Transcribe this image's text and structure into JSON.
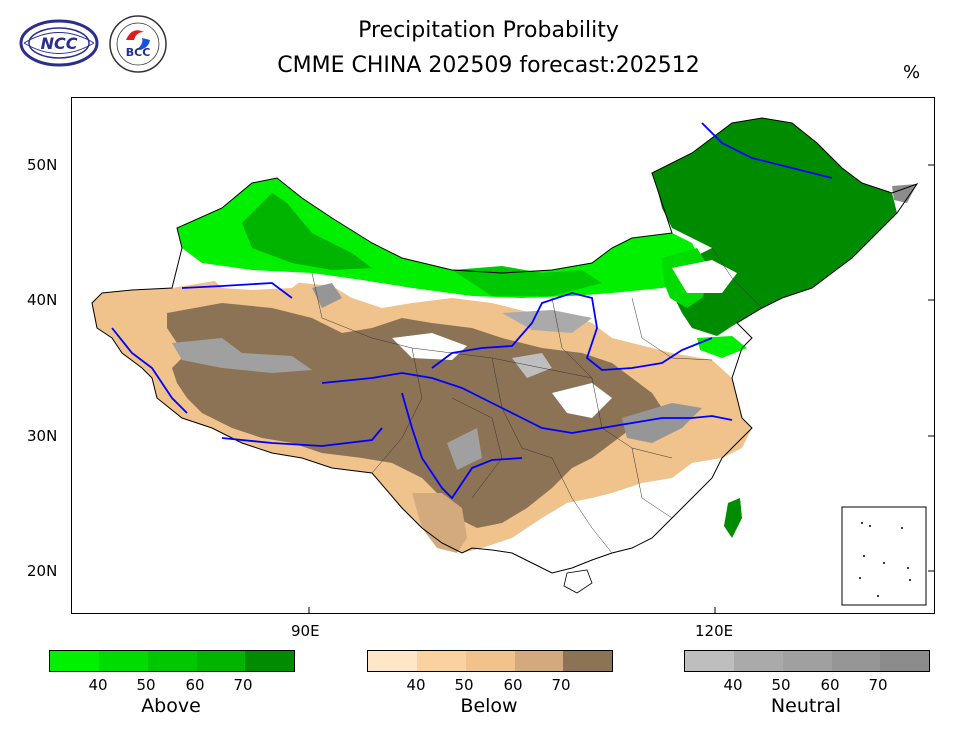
{
  "header": {
    "title_line1": "Precipitation Probability",
    "title_line2": "CMME CHINA 202509 forecast:202512",
    "unit": "%"
  },
  "logos": [
    {
      "name": "NCC",
      "text": "NCC"
    },
    {
      "name": "BCC",
      "text": "BCC"
    }
  ],
  "axes": {
    "lat_labels": [
      "50N",
      "40N",
      "30N",
      "20N"
    ],
    "lon_labels": [
      "90E",
      "120E"
    ]
  },
  "legend": {
    "above": {
      "label": "Above",
      "ticks": [
        "40",
        "50",
        "60",
        "70"
      ],
      "colors": [
        "#00f000",
        "#00dc00",
        "#00c800",
        "#00b400",
        "#008c00"
      ]
    },
    "below": {
      "label": "Below",
      "ticks": [
        "40",
        "50",
        "60",
        "70"
      ],
      "colors": [
        "#ffe6c8",
        "#fad2a0",
        "#f0c38c",
        "#d2aa7d",
        "#8c7355"
      ]
    },
    "neutral": {
      "label": "Neutral",
      "ticks": [
        "40",
        "50",
        "60",
        "70"
      ],
      "colors": [
        "#bebebe",
        "#aaaaaa",
        "#a0a0a0",
        "#969696",
        "#8c8c8c"
      ]
    }
  }
}
